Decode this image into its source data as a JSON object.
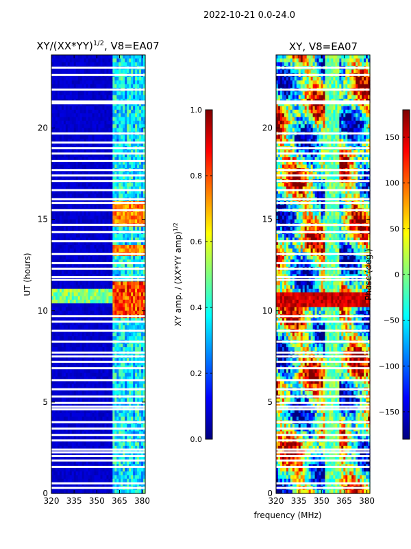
{
  "figure": {
    "suptitle": "2022-10-21 0.0-24.0",
    "shared_xlabel": "frequency (MHz)"
  },
  "colors": {
    "jet": [
      "#00007f",
      "#0000ff",
      "#007fff",
      "#00ffff",
      "#7fff7f",
      "#ffff00",
      "#ff7f00",
      "#ff0000",
      "#7f0000"
    ],
    "gap": "#ffffff"
  },
  "chart_data": [
    {
      "type": "heatmap",
      "title_main": "XY/(XX*YY)",
      "title_sup": "1/2",
      "title_suffix": ", V8=EA07",
      "xlabel": "",
      "ylabel": "UT (hours)",
      "xlim": [
        320,
        382
      ],
      "ylim": [
        0,
        24
      ],
      "xticks": [
        320,
        335,
        350,
        365,
        380
      ],
      "yticks": [
        0,
        5,
        10,
        15,
        20
      ],
      "colorbar": {
        "label_main": "XY amp. / (XX*YY amp)",
        "label_sup": "1/2",
        "range": [
          0.0,
          1.0
        ],
        "ticks": [
          "0.0",
          "0.2",
          "0.4",
          "0.6",
          "0.8",
          "1.0"
        ]
      },
      "description_values": {
        "background_amp": 0.05,
        "rfi_band_MHz": [
          360,
          382
        ],
        "rfi_amp": 0.45,
        "bright_interval_hours": [
          9.7,
          11.7
        ],
        "bright_amp": 0.9
      }
    },
    {
      "type": "heatmap",
      "title_main": "XY, V8=EA07",
      "xlabel": "",
      "ylabel": "",
      "xlim": [
        320,
        382
      ],
      "ylim": [
        0,
        24
      ],
      "xticks": [
        320,
        335,
        350,
        365,
        380
      ],
      "yticks": [
        0,
        5,
        10,
        15,
        20
      ],
      "colorbar": {
        "label_main": "Phase (deg.)",
        "range": [
          -180,
          180
        ],
        "ticks": [
          "-150",
          "-100",
          "-50",
          "0",
          "50",
          "100",
          "150"
        ]
      },
      "description_values": {
        "bright_interval_hours": [
          10.3,
          11.0
        ],
        "bright_phase_deg": 150
      }
    }
  ],
  "gaps_hours": [
    0.3,
    0.55,
    1.45,
    1.8,
    2.05,
    2.25,
    2.4,
    2.9,
    3.2,
    3.55,
    3.9,
    4.6,
    4.75,
    4.95,
    5.3,
    5.7,
    6.2,
    6.85,
    7.2,
    7.5,
    7.7,
    8.3,
    8.9,
    9.4,
    9.7,
    11.7,
    11.85,
    12.3,
    12.6,
    13.1,
    13.8,
    14.3,
    14.7,
    15.5,
    15.9,
    16.1,
    16.6,
    17.1,
    17.4,
    17.7,
    18.2,
    18.6,
    18.9,
    19.2,
    19.7,
    21.35,
    21.45,
    22.1,
    22.9,
    23.3
  ]
}
